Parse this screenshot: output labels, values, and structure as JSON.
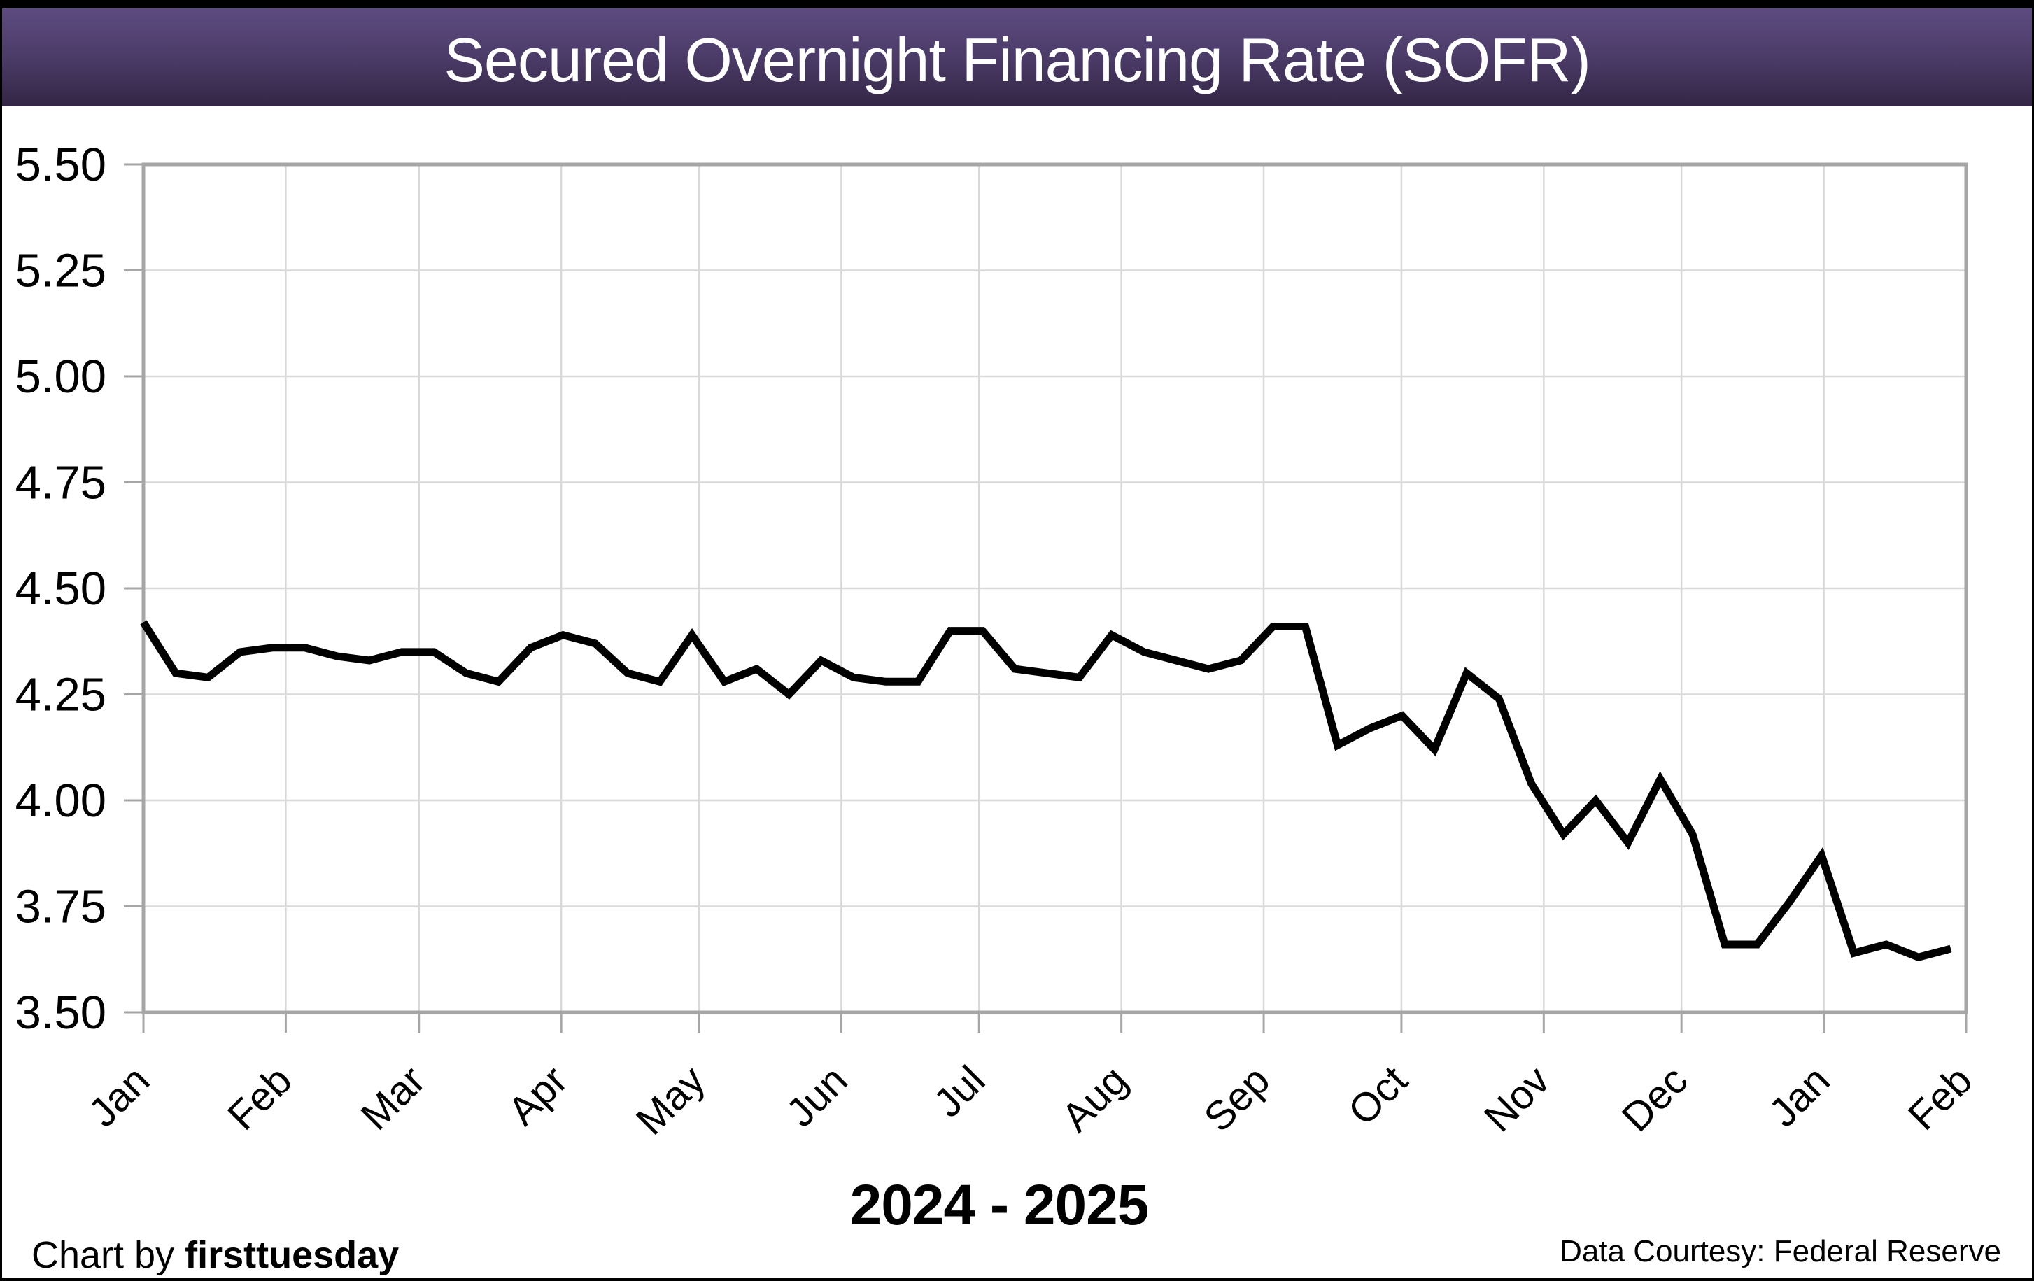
{
  "header": {
    "title": "Secured Overnight Financing Rate (SOFR)"
  },
  "footer": {
    "credit_prefix": "Chart by ",
    "credit_brand": "firsttuesday",
    "data_courtesy": "Data Courtesy: Federal Reserve"
  },
  "colors": {
    "header_gradient_top": "#5d4b80",
    "header_gradient_bottom": "#332645",
    "frame": "#000000",
    "plot_border": "#a6a6a6",
    "tick": "#a6a6a6",
    "gridline": "#d9d9d9",
    "line": "#000000",
    "title_text": "#ffffff",
    "background": "#ffffff"
  },
  "chart_data": {
    "type": "line",
    "title": "Secured Overnight Financing Rate (SOFR)",
    "xlabel": "2024 - 2025",
    "ylabel": "",
    "ylim": [
      3.5,
      5.5
    ],
    "grid": true,
    "legend_position": "none",
    "y_ticks": [
      "5.50",
      "5.25",
      "5.00",
      "4.75",
      "4.50",
      "4.25",
      "4.00",
      "3.75",
      "3.50"
    ],
    "x_ticks": [
      {
        "label": "Jan",
        "day": 0
      },
      {
        "label": "Feb",
        "day": 31
      },
      {
        "label": "Mar",
        "day": 60
      },
      {
        "label": "Apr",
        "day": 91
      },
      {
        "label": "May",
        "day": 121
      },
      {
        "label": "Jun",
        "day": 152
      },
      {
        "label": "Jul",
        "day": 182
      },
      {
        "label": "Aug",
        "day": 213
      },
      {
        "label": "Sep",
        "day": 244
      },
      {
        "label": "Oct",
        "day": 274
      },
      {
        "label": "Nov",
        "day": 305
      },
      {
        "label": "Dec",
        "day": 335
      },
      {
        "label": "Jan",
        "day": 366
      },
      {
        "label": "Feb",
        "day": 397
      }
    ],
    "x_range_days": [
      0,
      397
    ],
    "series": [
      {
        "name": "SOFR",
        "frequency": "weekly",
        "period": "Jan 2024 - Feb 2025",
        "values": [
          4.42,
          4.3,
          4.29,
          4.35,
          4.36,
          4.36,
          4.34,
          4.33,
          4.35,
          4.35,
          4.3,
          4.28,
          4.36,
          4.39,
          4.37,
          4.3,
          4.28,
          4.39,
          4.28,
          4.31,
          4.25,
          4.33,
          4.29,
          4.28,
          4.28,
          4.4,
          4.4,
          4.31,
          4.3,
          4.29,
          4.39,
          4.35,
          4.33,
          4.31,
          4.33,
          4.41,
          4.41,
          4.13,
          4.17,
          4.2,
          4.12,
          4.3,
          4.24,
          4.04,
          3.92,
          4.0,
          3.9,
          4.05,
          3.92,
          3.66,
          3.66,
          3.76,
          3.87,
          3.64,
          3.66,
          3.63,
          3.65
        ]
      }
    ]
  }
}
